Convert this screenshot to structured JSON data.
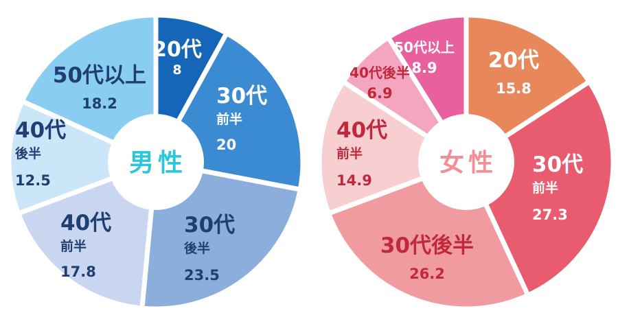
{
  "chart_data": [
    {
      "type": "pie",
      "title": "男性",
      "title_color": "#29c7d9",
      "start_angle_deg": 0,
      "slices": [
        {
          "label": "20代",
          "sublabel": "",
          "value": 8.0,
          "value_label": "8.0%",
          "color": "#1566b8",
          "text_color": "#ffffff"
        },
        {
          "label": "30代",
          "sublabel": "前半",
          "value": 20.0,
          "value_label": "20.0%",
          "color": "#3a8bd2",
          "text_color": "#ffffff"
        },
        {
          "label": "30代",
          "sublabel": "後半",
          "value": 23.5,
          "value_label": "23.5%",
          "color": "#8caedd",
          "text_color": "#1f3f73"
        },
        {
          "label": "40代",
          "sublabel": "前半",
          "value": 17.8,
          "value_label": "17.8%",
          "color": "#c8d7ef",
          "text_color": "#1f3f73"
        },
        {
          "label": "40代",
          "sublabel": "後半",
          "value": 12.5,
          "value_label": "12.5%",
          "color": "#cbe6f9",
          "text_color": "#1f3f73"
        },
        {
          "label": "50代以上",
          "sublabel": "",
          "value": 18.2,
          "value_label": "18.2%",
          "color": "#89cef2",
          "text_color": "#1f3f73"
        }
      ]
    },
    {
      "type": "pie",
      "title": "女性",
      "title_color": "#f08f95",
      "start_angle_deg": 0,
      "slices": [
        {
          "label": "20代",
          "sublabel": "",
          "value": 15.8,
          "value_label": "15.8%",
          "color": "#e8875a",
          "text_color": "#ffffff"
        },
        {
          "label": "30代",
          "sublabel": "前半",
          "value": 27.3,
          "value_label": "27.3%",
          "color": "#e95c70",
          "text_color": "#ffffff"
        },
        {
          "label": "30代後半",
          "sublabel": "",
          "value": 26.2,
          "value_label": "26.2%",
          "color": "#f09ba0",
          "text_color": "#c0283c"
        },
        {
          "label": "40代",
          "sublabel": "前半",
          "value": 14.9,
          "value_label": "14.9%",
          "color": "#f7cfd0",
          "text_color": "#c0283c"
        },
        {
          "label": "40代後半",
          "sublabel": "",
          "value": 6.9,
          "value_label": "6.9%",
          "color": "#f4a6c0",
          "text_color": "#c0283c"
        },
        {
          "label": "50代以上",
          "sublabel": "",
          "value": 8.9,
          "value_label": "8.9%",
          "color": "#e9609f",
          "text_color": "#ffffff"
        }
      ]
    }
  ]
}
